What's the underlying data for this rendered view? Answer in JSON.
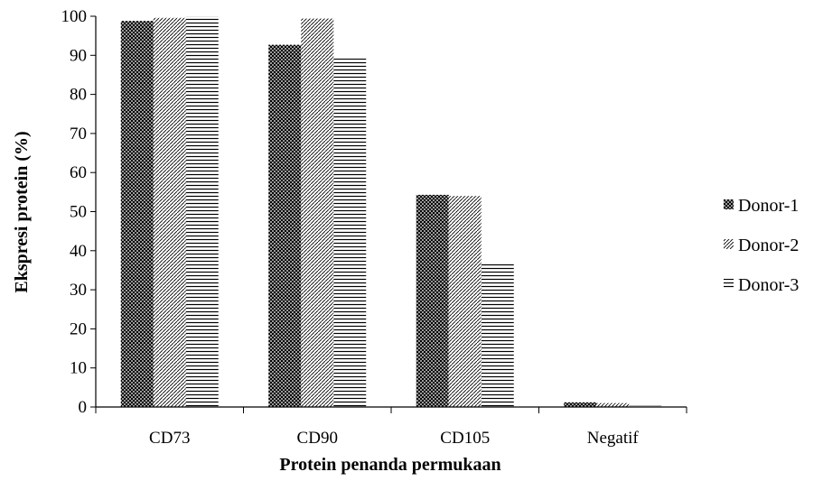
{
  "chart_data": {
    "type": "bar",
    "categories": [
      "CD73",
      "CD90",
      "CD105",
      "Negatif"
    ],
    "series": [
      {
        "name": "Donor-1",
        "values": [
          98.8,
          92.7,
          54.3,
          1.2
        ],
        "pattern": "crosshatch"
      },
      {
        "name": "Donor-2",
        "values": [
          99.6,
          99.4,
          54.0,
          1.0
        ],
        "pattern": "diagonal"
      },
      {
        "name": "Donor-3",
        "values": [
          100,
          89.2,
          36.8,
          0.3
        ],
        "pattern": "horizontal"
      }
    ],
    "xlabel": "Protein penanda permukaan",
    "ylabel": "Ekspresi protein (%)",
    "ylim": [
      0,
      100
    ],
    "yticks": [
      0,
      10,
      20,
      30,
      40,
      50,
      60,
      70,
      80,
      90,
      100
    ],
    "grid": false,
    "legend_position": "right",
    "colors": {
      "bar": "#000000",
      "axis": "#000000",
      "background": "#ffffff"
    }
  }
}
